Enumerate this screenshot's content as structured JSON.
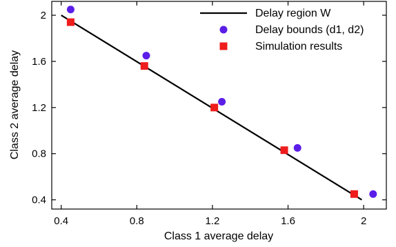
{
  "chart_data": {
    "type": "scatter",
    "xlabel": "Class 1 average delay",
    "ylabel": "Class 2 average delay",
    "xlim": [
      0.35,
      2.12
    ],
    "ylim": [
      0.32,
      2.12
    ],
    "xticks": [
      0.4,
      0.8,
      1.2,
      1.6,
      2.0
    ],
    "yticks": [
      0.4,
      0.8,
      1.2,
      1.6,
      2.0
    ],
    "xtick_labels": [
      "0.4",
      "0.8",
      "1.2",
      "1.6",
      "2"
    ],
    "ytick_labels": [
      "0.4",
      "0.8",
      "1.2",
      "1.6",
      "2"
    ],
    "grid": false,
    "legend_position": "top-right",
    "series": [
      {
        "name": "Delay region W",
        "kind": "line",
        "color": "#000000",
        "x": [
          0.4,
          1.99
        ],
        "y": [
          2.0,
          0.4
        ]
      },
      {
        "name": "Delay bounds (d1, d2)",
        "kind": "circle",
        "color": "#5a1ee8",
        "x": [
          0.45,
          0.85,
          1.25,
          1.65,
          2.05
        ],
        "y": [
          2.05,
          1.65,
          1.25,
          0.85,
          0.45
        ]
      },
      {
        "name": "Simulation results",
        "kind": "square",
        "color": "#ee1c1c",
        "x": [
          0.45,
          0.84,
          1.21,
          1.58,
          1.95
        ],
        "y": [
          1.94,
          1.56,
          1.2,
          0.83,
          0.45
        ]
      }
    ]
  }
}
